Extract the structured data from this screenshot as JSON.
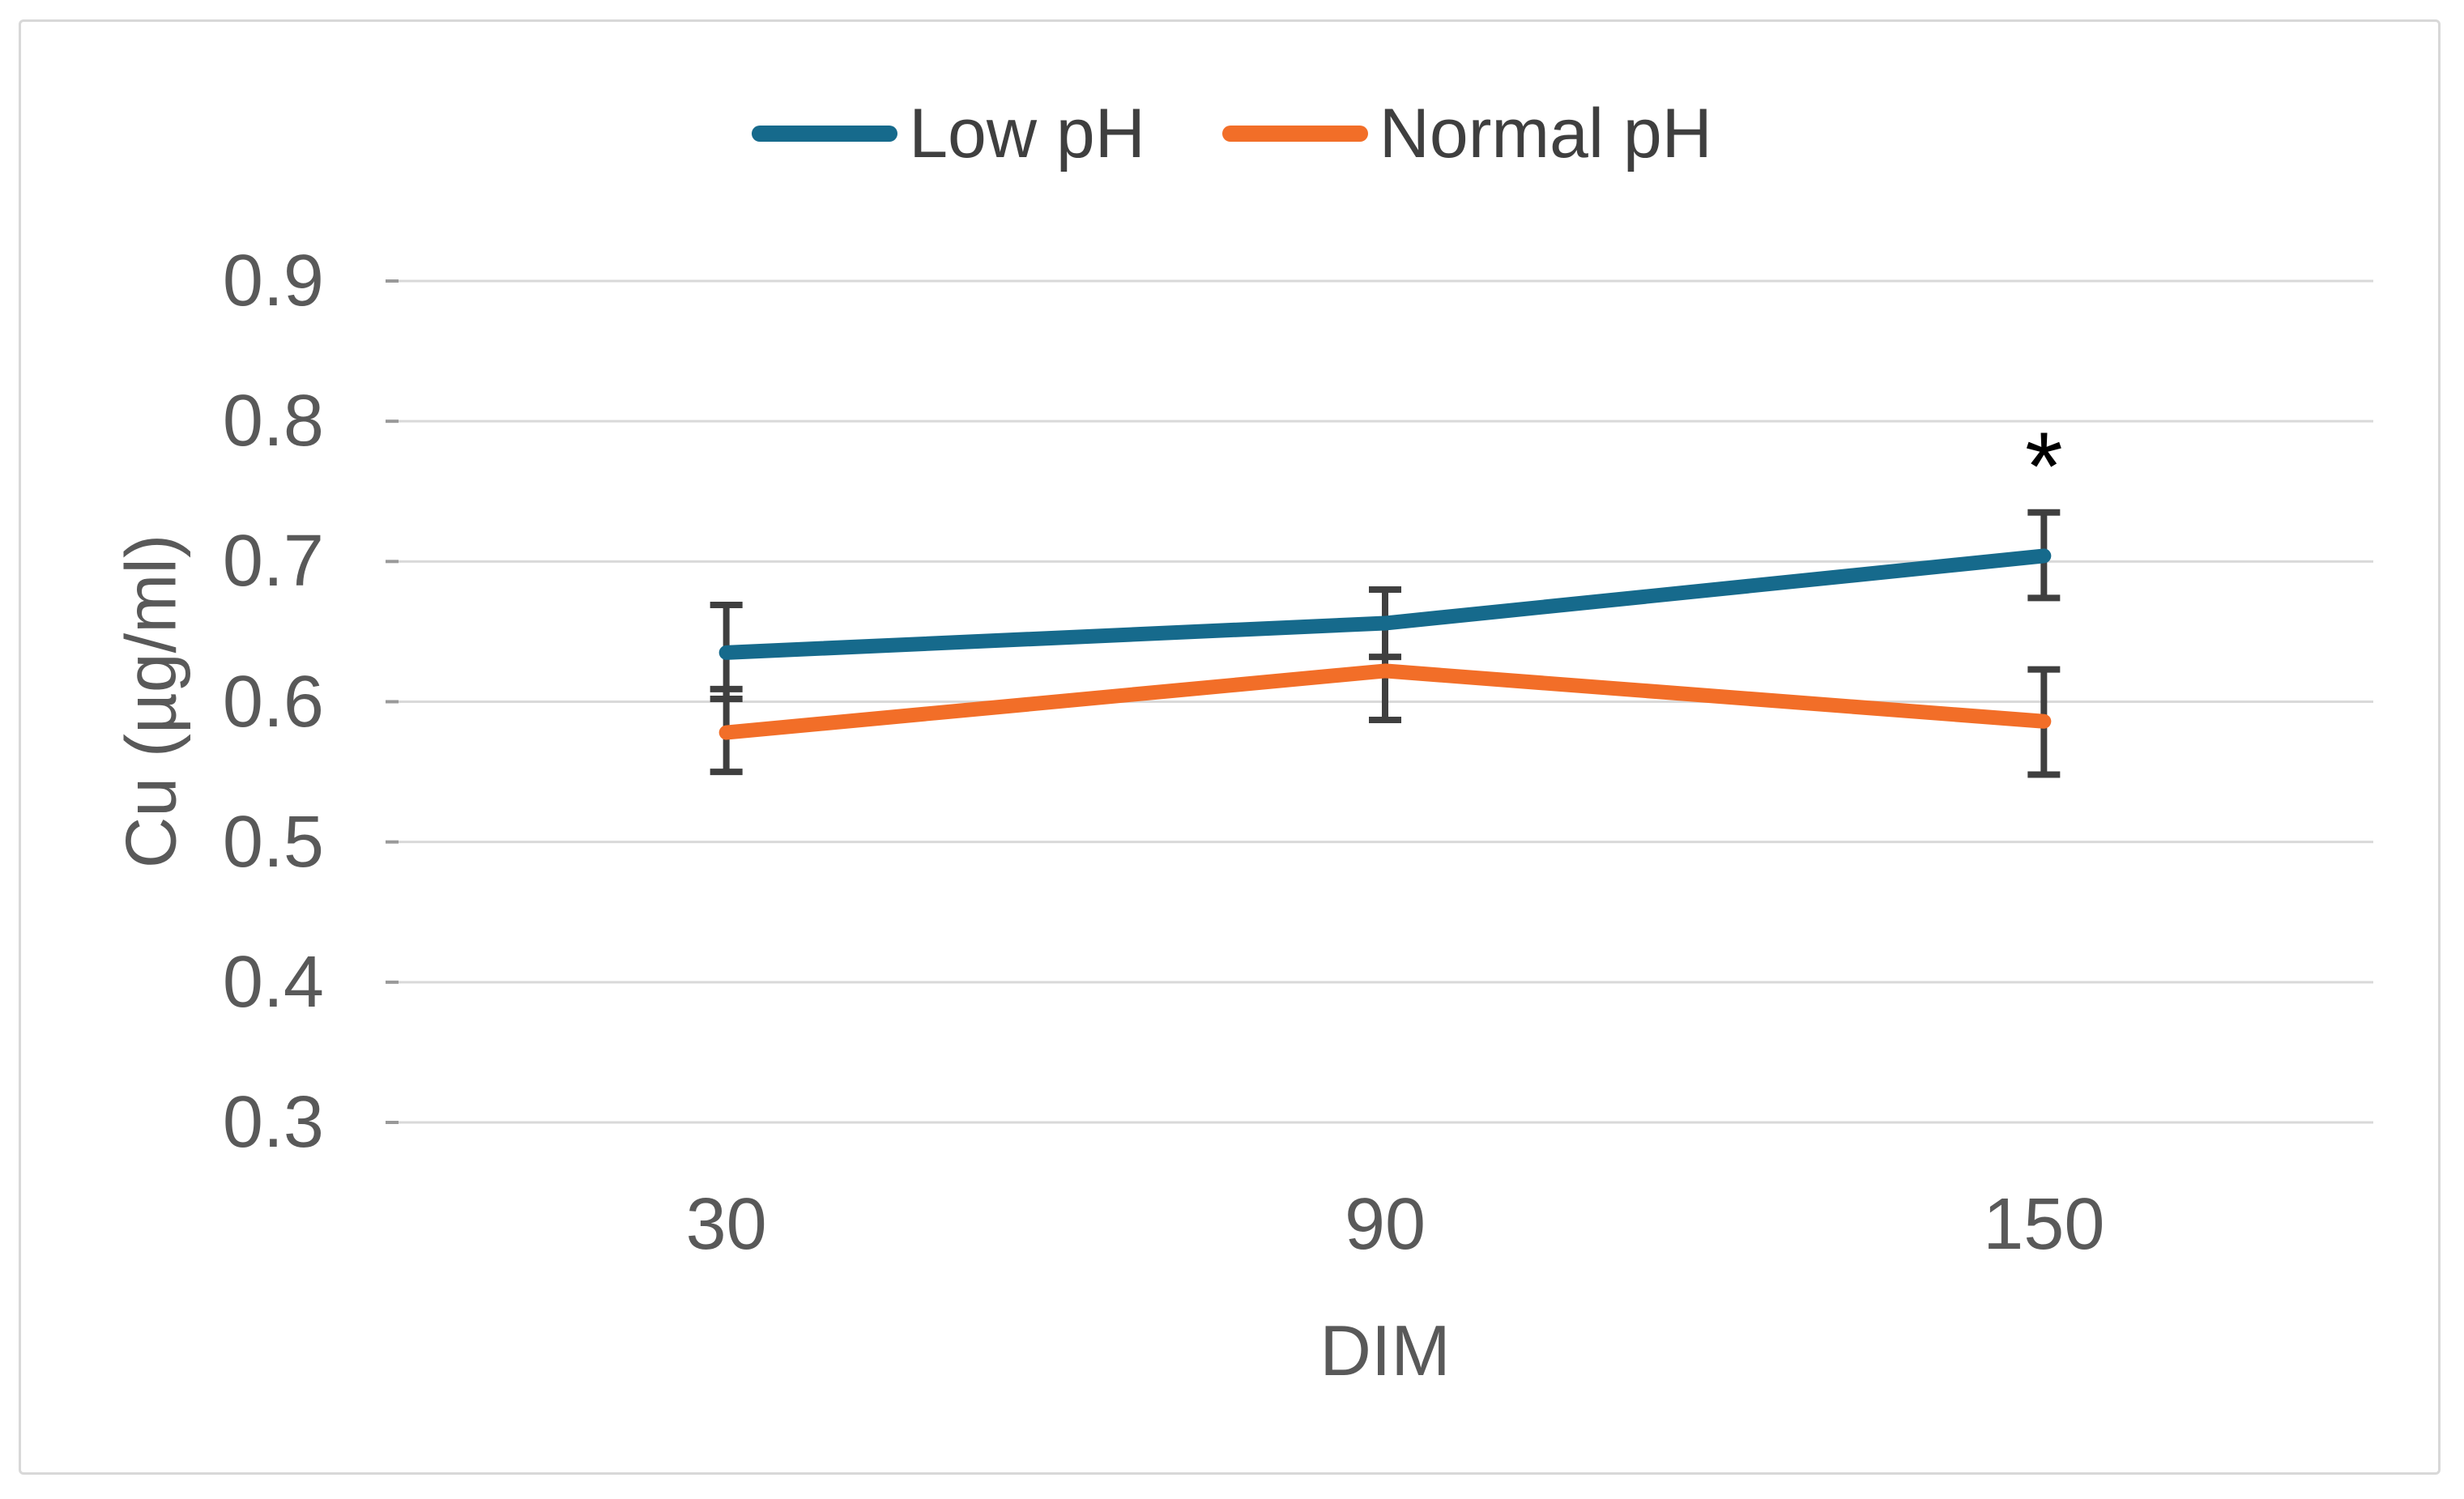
{
  "figure": {
    "background_color": "#FFFFFF",
    "border_color": "#D8D8D8"
  },
  "legend": {
    "position": "top-center",
    "items": [
      {
        "label": "Low pH",
        "color": "#166A8C",
        "swatch": "line-swatch"
      },
      {
        "label": "Normal pH",
        "color": "#F26E28",
        "swatch": "line-swatch"
      }
    ]
  },
  "chart_data": {
    "type": "line",
    "title": "",
    "xlabel": "DIM",
    "ylabel": "Cu (µg/ml)",
    "categories": [
      "30",
      "90",
      "150"
    ],
    "series": [
      {
        "name": "Low pH",
        "color": "#166A8C",
        "values": [
          0.635,
          0.656,
          0.704
        ],
        "error_low": [
          0.602,
          0.632,
          0.674
        ],
        "error_high": [
          0.669,
          0.68,
          0.735
        ]
      },
      {
        "name": "Normal pH",
        "color": "#F26E28",
        "values": [
          0.578,
          0.622,
          0.586
        ],
        "error_low": [
          0.55,
          0.587,
          0.548
        ],
        "error_high": [
          0.609,
          0.657,
          0.623
        ]
      }
    ],
    "ylim": [
      0.3,
      0.9
    ],
    "ytick_labels": [
      "0.9",
      "0.8",
      "0.7",
      "0.6",
      "0.5",
      "0.4",
      "0.3"
    ],
    "grid": true,
    "gridline_color": "#D9D9D9",
    "tick_mark_color": "#999999",
    "error_bar_color": "#3F3F3F",
    "legend_position": "top",
    "annotations": [
      {
        "text": "*",
        "x_index": 2,
        "y": 0.78,
        "color": "#000000",
        "meaning": "significance-marker"
      }
    ]
  }
}
